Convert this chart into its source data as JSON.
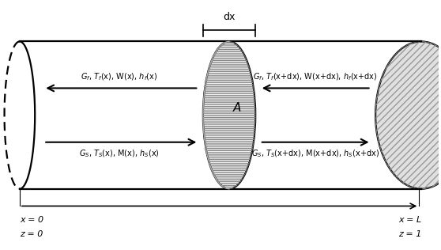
{
  "fig_width": 5.58,
  "fig_height": 3.16,
  "bg_color": "#ffffff",
  "label_top_left": "$G_f$, $T_f$(x), W(x), $h_f$(x)",
  "label_top_right": "$G_f$, $T_f$(x+dx), W(x+dx), $h_f$(x+dx)",
  "label_bot_left": "$G_S$, $T_S$(x), M(x), $h_S$(x)",
  "label_bot_right": "$G_S$, $T_S$(x+dx), M(x+dx), $h_S$(x+dx)",
  "label_A": "A",
  "dx_label": "dx",
  "x0_label": "x = 0",
  "xL_label": "x = L",
  "z0_label": "z = 0",
  "z1_label": "z = 1"
}
